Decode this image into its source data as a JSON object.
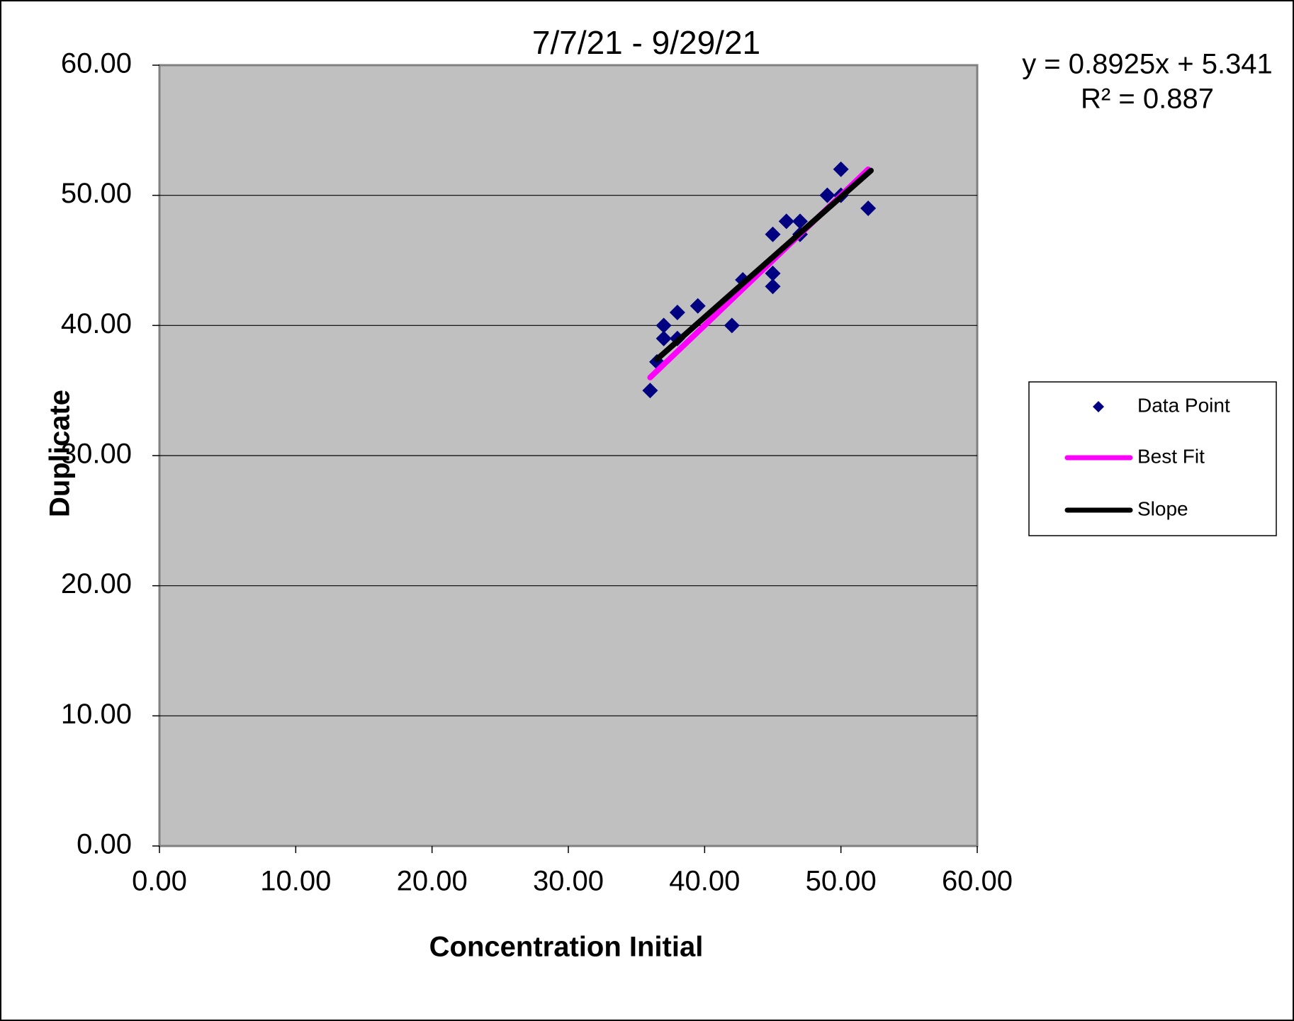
{
  "chart_data": {
    "type": "scatter",
    "title": "7/7/21 - 9/29/21",
    "x_label": "Concentration Initial",
    "y_label": "Duplicate",
    "annotations": [
      "y = 0.8925x + 5.341",
      "R² = 0.887"
    ],
    "plot_background": "#c0c0c0",
    "grid": "y",
    "legend": "right",
    "xlim": [
      0,
      60
    ],
    "ylim": [
      0,
      60
    ],
    "xticks": [
      {
        "value": 0,
        "label": "0.00"
      },
      {
        "value": 10,
        "label": "10.00"
      },
      {
        "value": 20,
        "label": "20.00"
      },
      {
        "value": 30,
        "label": "30.00"
      },
      {
        "value": 40,
        "label": "40.00"
      },
      {
        "value": 50,
        "label": "50.00"
      },
      {
        "value": 60,
        "label": "60.00"
      }
    ],
    "yticks": [
      {
        "value": 0,
        "label": "0.00"
      },
      {
        "value": 10,
        "label": "10.00"
      },
      {
        "value": 20,
        "label": "20.00"
      },
      {
        "value": 30,
        "label": "30.00"
      },
      {
        "value": 40,
        "label": "40.00"
      },
      {
        "value": 50,
        "label": "50.00"
      },
      {
        "value": 60,
        "label": "60.00"
      }
    ],
    "series": [
      {
        "name": "Data Point",
        "type": "scatter",
        "color": "#000080",
        "x": [
          36,
          36.5,
          37,
          37,
          38,
          38,
          39.5,
          42,
          42.8,
          45,
          45,
          45,
          46,
          47,
          47,
          49,
          50,
          50,
          52
        ],
        "values": [
          35,
          37.2,
          40,
          39,
          41,
          39,
          41.5,
          40,
          43.5,
          47,
          44,
          43,
          48,
          48,
          47,
          50,
          52,
          50,
          49
        ]
      },
      {
        "name": "Best Fit",
        "type": "line",
        "color": "#ff00ff",
        "x": [
          36,
          52
        ],
        "values": [
          36,
          52
        ]
      },
      {
        "name": "Slope",
        "type": "line",
        "color": "#000000",
        "x": [
          36.5,
          52.2
        ],
        "values": [
          37.4,
          51.9
        ]
      }
    ]
  }
}
